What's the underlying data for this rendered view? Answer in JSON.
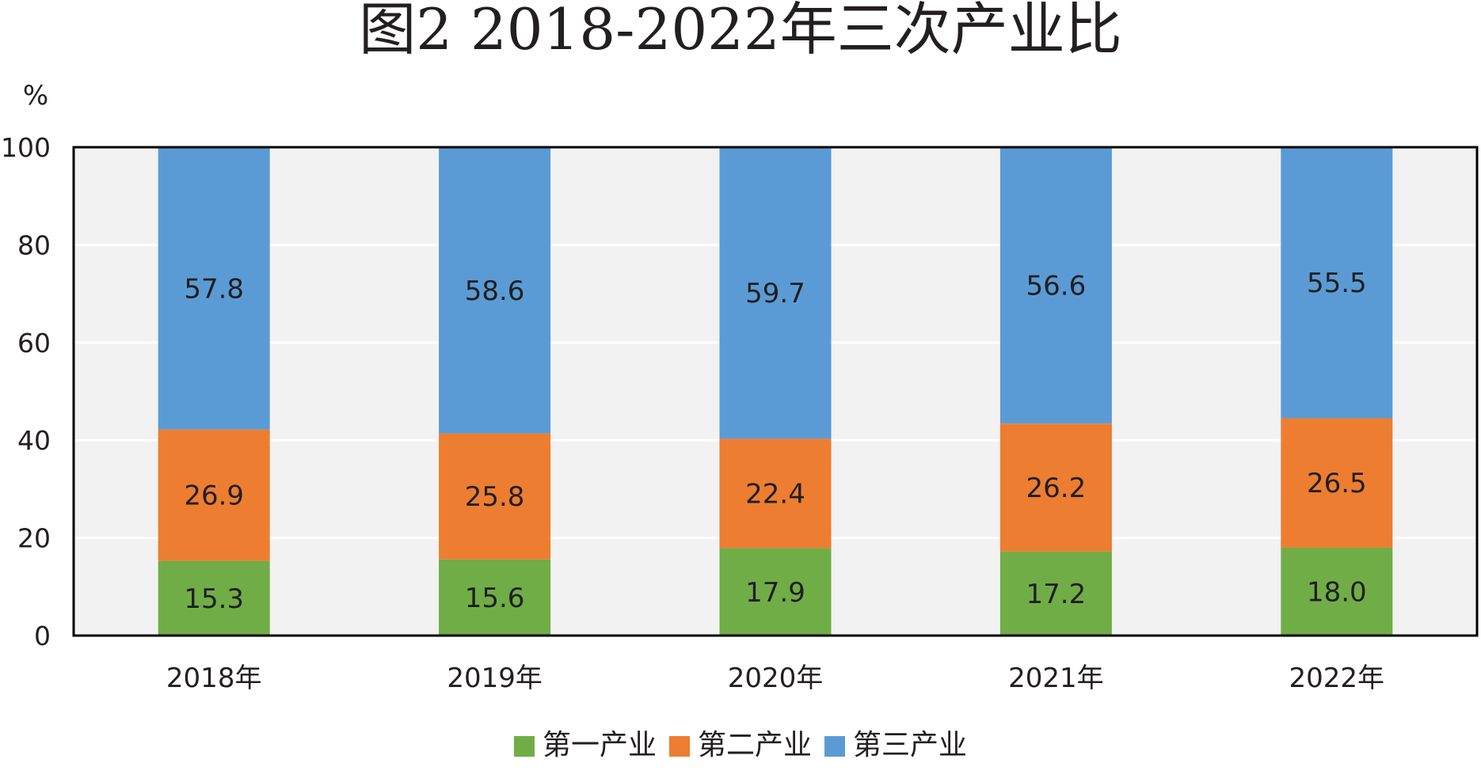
{
  "chart_data": {
    "type": "bar",
    "stacked": true,
    "title": "图2  2018-2022年三次产业比",
    "ylabel": "%",
    "xlabel": "",
    "ylim": [
      0,
      100
    ],
    "yticks": [
      0,
      20,
      40,
      60,
      80,
      100
    ],
    "grid": true,
    "legend_position": "bottom",
    "categories": [
      "2018年",
      "2019年",
      "2020年",
      "2021年",
      "2022年"
    ],
    "series": [
      {
        "name": "第一产业",
        "color": "#70ad47",
        "values": [
          15.3,
          15.6,
          17.9,
          17.2,
          18.0
        ]
      },
      {
        "name": "第二产业",
        "color": "#ed7d31",
        "values": [
          26.9,
          25.8,
          22.4,
          26.2,
          26.5
        ]
      },
      {
        "name": "第三产业",
        "color": "#5b9bd5",
        "values": [
          57.8,
          58.6,
          59.7,
          56.6,
          55.5
        ]
      }
    ],
    "plot_background": "#f2f2f2"
  }
}
